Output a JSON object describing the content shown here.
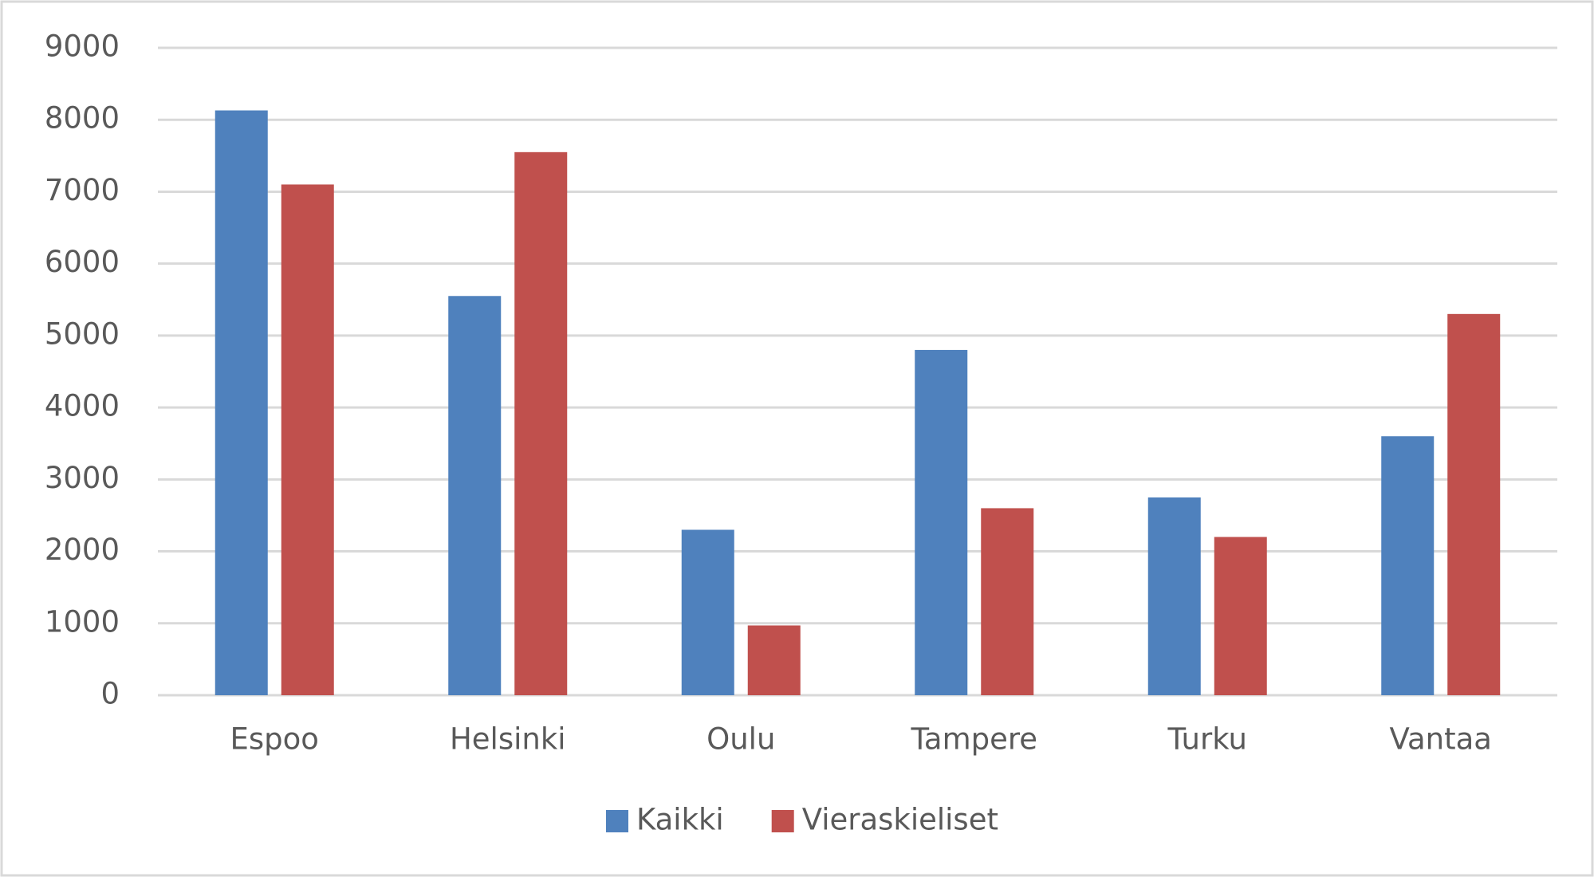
{
  "chart_data": {
    "type": "bar",
    "categories": [
      "Espoo",
      "Helsinki",
      "Oulu",
      "Tampere",
      "Turku",
      "Vantaa"
    ],
    "series": [
      {
        "name": "Kaikki",
        "color": "#4f81bd",
        "values": [
          8130,
          5550,
          2300,
          4800,
          2750,
          3600
        ]
      },
      {
        "name": "Vieraskieliset",
        "color": "#c0504d",
        "values": [
          7100,
          7550,
          970,
          2600,
          2200,
          5300
        ]
      }
    ],
    "ylim": [
      0,
      9000
    ],
    "yticks": [
      0,
      1000,
      2000,
      3000,
      4000,
      5000,
      6000,
      7000,
      8000,
      9000
    ],
    "grid": true,
    "legend": "bottom"
  }
}
